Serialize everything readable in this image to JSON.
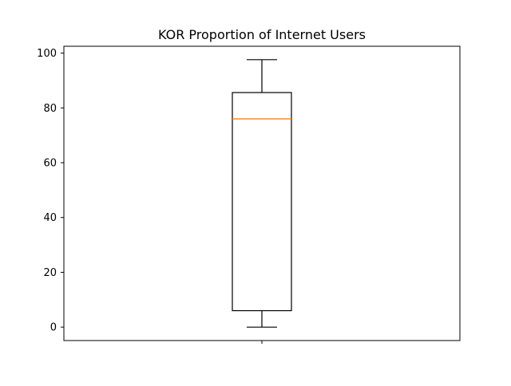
{
  "chart_data": {
    "type": "box",
    "title": "KOR Proportion of Internet Users",
    "xlabel": "",
    "ylabel": "",
    "categories": [
      ""
    ],
    "box": {
      "min": 0.0,
      "q1": 6.0,
      "median": 76.0,
      "q3": 85.6,
      "max": 97.6
    },
    "ylim": [
      -4.9,
      102.5
    ],
    "yticks": [
      0,
      20,
      40,
      60,
      80,
      100
    ],
    "ytick_labels": [
      "0",
      "20",
      "40",
      "60",
      "80",
      "100"
    ],
    "grid": false,
    "colors": {
      "box": "#000000",
      "median": "#ff7f0e",
      "axes": "#000000"
    }
  }
}
